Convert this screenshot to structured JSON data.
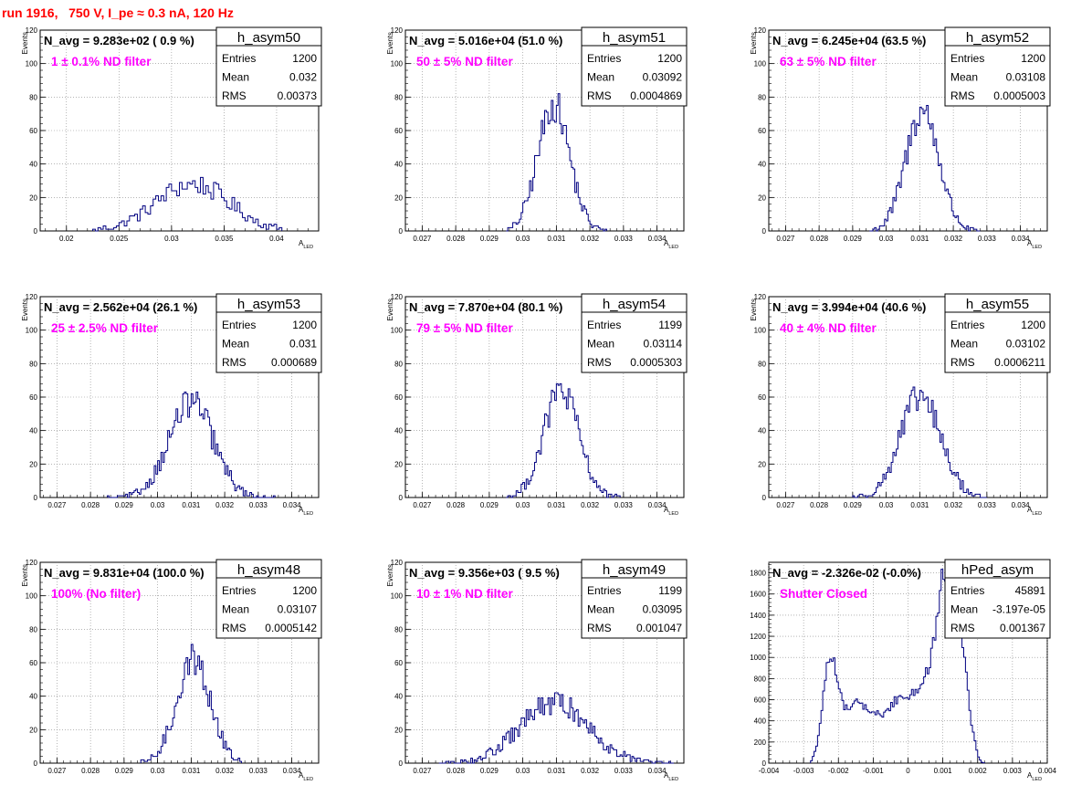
{
  "page_title": "run 1916,   750 V, I_pe ≈ 0.3 nA, 120 Hz",
  "colors": {
    "title": "#ff0000",
    "annotation": "#ff00ff",
    "histogram_line": "#000080",
    "grid": "#888888"
  },
  "chart_data": [
    {
      "type": "histogram",
      "histogram": "h_asym50",
      "navg": "N_avg = 9.283e+02 ( 0.9 %)",
      "annotation": "1 ± 0.1% ND filter",
      "entries": "1200",
      "mean": "0.032",
      "rms": "0.00373",
      "stats_labels": [
        "Entries",
        "Mean",
        "RMS"
      ],
      "xlabel": "A_LED",
      "ylabel": "Events",
      "xlim": [
        0.0175,
        0.044
      ],
      "ylim": [
        0,
        120
      ],
      "xticks": [
        0.02,
        0.025,
        0.03,
        0.035,
        0.04
      ],
      "xtick_labels": [
        "0.02",
        "0.025",
        "0.03",
        "0.035",
        "0.04"
      ],
      "yticks": [
        0,
        20,
        40,
        60,
        80,
        100,
        120
      ],
      "peak": {
        "mean": 0.032,
        "sigma": 0.0035,
        "height": 28
      },
      "bins": {
        "start": 0.0225,
        "end": 0.0405,
        "width": 0.00025
      }
    },
    {
      "type": "histogram",
      "histogram": "h_asym51",
      "navg": "N_avg = 5.016e+04 (51.0 %)",
      "annotation": "50 ± 5% ND filter",
      "entries": "1200",
      "mean": "0.03092",
      "rms": "0.0004869",
      "stats_labels": [
        "Entries",
        "Mean",
        "RMS"
      ],
      "xlabel": "A_LED",
      "ylabel": "Events",
      "xlim": [
        0.0265,
        0.0348
      ],
      "ylim": [
        0,
        120
      ],
      "xticks": [
        0.027,
        0.028,
        0.029,
        0.03,
        0.031,
        0.032,
        0.033,
        0.034
      ],
      "xtick_labels": [
        "0.027",
        "0.028",
        "0.029",
        "0.03",
        "0.031",
        "0.032",
        "0.033",
        "0.034"
      ],
      "yticks": [
        0,
        20,
        40,
        60,
        80,
        100,
        120
      ],
      "peak": {
        "mean": 0.03092,
        "sigma": 0.00047,
        "height": 76
      },
      "bins": {
        "start": 0.0295,
        "end": 0.0325,
        "width": 5e-05
      }
    },
    {
      "type": "histogram",
      "histogram": "h_asym52",
      "navg": "N_avg = 6.245e+04 (63.5 %)",
      "annotation": "63 ± 5% ND filter",
      "entries": "1200",
      "mean": "0.03108",
      "rms": "0.0005003",
      "stats_labels": [
        "Entries",
        "Mean",
        "RMS"
      ],
      "xlabel": "A_LED",
      "ylabel": "Events",
      "xlim": [
        0.0265,
        0.0348
      ],
      "ylim": [
        0,
        120
      ],
      "xticks": [
        0.027,
        0.028,
        0.029,
        0.03,
        0.031,
        0.032,
        0.033,
        0.034
      ],
      "xtick_labels": [
        "0.027",
        "0.028",
        "0.029",
        "0.03",
        "0.031",
        "0.032",
        "0.033",
        "0.034"
      ],
      "yticks": [
        0,
        20,
        40,
        60,
        80,
        100,
        120
      ],
      "peak": {
        "mean": 0.03108,
        "sigma": 0.00049,
        "height": 72
      },
      "bins": {
        "start": 0.0295,
        "end": 0.0328,
        "width": 5e-05
      }
    },
    {
      "type": "histogram",
      "histogram": "h_asym53",
      "navg": "N_avg = 2.562e+04 (26.1 %)",
      "annotation": "25 ± 2.5% ND filter",
      "entries": "1200",
      "mean": "0.031",
      "rms": "0.000689",
      "stats_labels": [
        "Entries",
        "Mean",
        "RMS"
      ],
      "xlabel": "A_LED",
      "ylabel": "Events",
      "xlim": [
        0.0265,
        0.0348
      ],
      "ylim": [
        0,
        120
      ],
      "xticks": [
        0.027,
        0.028,
        0.029,
        0.03,
        0.031,
        0.032,
        0.033,
        0.034
      ],
      "xtick_labels": [
        "0.027",
        "0.028",
        "0.029",
        "0.03",
        "0.031",
        "0.032",
        "0.033",
        "0.034"
      ],
      "yticks": [
        0,
        20,
        40,
        60,
        80,
        100,
        120
      ],
      "peak": {
        "mean": 0.031,
        "sigma": 0.00066,
        "height": 57
      },
      "bins": {
        "start": 0.0285,
        "end": 0.0335,
        "width": 5e-05
      }
    },
    {
      "type": "histogram",
      "histogram": "h_asym54",
      "navg": "N_avg = 7.870e+04 (80.1 %)",
      "annotation": "79 ± 5% ND filter",
      "entries": "1199",
      "mean": "0.03114",
      "rms": "0.0005303",
      "stats_labels": [
        "Entries",
        "Mean",
        "RMS"
      ],
      "xlabel": "A_LED",
      "ylabel": "Events",
      "xlim": [
        0.0265,
        0.0348
      ],
      "ylim": [
        0,
        120
      ],
      "xticks": [
        0.027,
        0.028,
        0.029,
        0.03,
        0.031,
        0.032,
        0.033,
        0.034
      ],
      "xtick_labels": [
        "0.027",
        "0.028",
        "0.029",
        "0.03",
        "0.031",
        "0.032",
        "0.033",
        "0.034"
      ],
      "yticks": [
        0,
        20,
        40,
        60,
        80,
        100,
        120
      ],
      "peak": {
        "mean": 0.03114,
        "sigma": 0.00052,
        "height": 64
      },
      "bins": {
        "start": 0.0295,
        "end": 0.0329,
        "width": 5e-05
      }
    },
    {
      "type": "histogram",
      "histogram": "h_asym55",
      "navg": "N_avg = 3.994e+04 (40.6 %)",
      "annotation": "40 ± 4% ND filter",
      "entries": "1200",
      "mean": "0.03102",
      "rms": "0.0006211",
      "stats_labels": [
        "Entries",
        "Mean",
        "RMS"
      ],
      "xlabel": "A_LED",
      "ylabel": "Events",
      "xlim": [
        0.0265,
        0.0348
      ],
      "ylim": [
        0,
        120
      ],
      "xticks": [
        0.027,
        0.028,
        0.029,
        0.03,
        0.031,
        0.032,
        0.033,
        0.034
      ],
      "xtick_labels": [
        "0.027",
        "0.028",
        "0.029",
        "0.03",
        "0.031",
        "0.032",
        "0.033",
        "0.034"
      ],
      "yticks": [
        0,
        20,
        40,
        60,
        80,
        100,
        120
      ],
      "peak": {
        "mean": 0.03102,
        "sigma": 0.0006,
        "height": 60
      },
      "bins": {
        "start": 0.029,
        "end": 0.033,
        "width": 5e-05
      }
    },
    {
      "type": "histogram",
      "histogram": "h_asym48",
      "navg": "N_avg = 9.831e+04 (100.0 %)",
      "annotation": "100% (No filter)",
      "entries": "1200",
      "mean": "0.03107",
      "rms": "0.0005142",
      "stats_labels": [
        "Entries",
        "Mean",
        "RMS"
      ],
      "xlabel": "A_LED",
      "ylabel": "Events",
      "xlim": [
        0.0265,
        0.0348
      ],
      "ylim": [
        0,
        120
      ],
      "xticks": [
        0.027,
        0.028,
        0.029,
        0.03,
        0.031,
        0.032,
        0.033,
        0.034
      ],
      "xtick_labels": [
        "0.027",
        "0.028",
        "0.029",
        "0.03",
        "0.031",
        "0.032",
        "0.033",
        "0.034"
      ],
      "yticks": [
        0,
        20,
        40,
        60,
        80,
        100,
        120
      ],
      "peak": {
        "mean": 0.03107,
        "sigma": 0.0005,
        "height": 62
      },
      "bins": {
        "start": 0.0295,
        "end": 0.0325,
        "width": 5e-05
      }
    },
    {
      "type": "histogram",
      "histogram": "h_asym49",
      "navg": "N_avg = 9.356e+03 ( 9.5 %)",
      "annotation": "10 ± 1% ND filter",
      "entries": "1199",
      "mean": "0.03095",
      "rms": "0.001047",
      "stats_labels": [
        "Entries",
        "Mean",
        "RMS"
      ],
      "xlabel": "A_LED",
      "ylabel": "Events",
      "xlim": [
        0.0265,
        0.0348
      ],
      "ylim": [
        0,
        120
      ],
      "xticks": [
        0.027,
        0.028,
        0.029,
        0.03,
        0.031,
        0.032,
        0.033,
        0.034
      ],
      "xtick_labels": [
        "0.027",
        "0.028",
        "0.029",
        "0.03",
        "0.031",
        "0.032",
        "0.033",
        "0.034"
      ],
      "yticks": [
        0,
        20,
        40,
        60,
        80,
        100,
        120
      ],
      "peak": {
        "mean": 0.03095,
        "sigma": 0.00102,
        "height": 36
      },
      "bins": {
        "start": 0.0275,
        "end": 0.0345,
        "width": 5e-05
      }
    },
    {
      "type": "histogram",
      "histogram": "hPed_asym",
      "navg": "N_avg = -2.326e-02 (-0.0%)",
      "annotation": "Shutter Closed",
      "entries": "45891",
      "mean": "-3.197e-05",
      "rms": "0.001367",
      "stats_labels": [
        "Entries",
        "Mean",
        "RMS"
      ],
      "xlabel": "A_LED",
      "ylabel": "",
      "xlim": [
        -0.004,
        0.004
      ],
      "ylim": [
        0,
        1900
      ],
      "xticks": [
        -0.004,
        -0.003,
        -0.002,
        -0.001,
        0,
        0.001,
        0.002,
        0.003,
        0.004
      ],
      "xtick_labels": [
        "-0.004",
        "-0.003",
        "-0.002",
        "-0.001",
        "0",
        "0.001",
        "0.002",
        "0.003",
        "0.004"
      ],
      "yticks": [
        0,
        200,
        400,
        600,
        800,
        1000,
        1200,
        1400,
        1600,
        1800
      ],
      "bins": {
        "start": -0.0028,
        "end": 0.0022,
        "width": 5e-05
      },
      "profile_x": [
        -0.0028,
        -0.0026,
        -0.0024,
        -0.0023,
        -0.00215,
        -0.002,
        -0.0018,
        -0.0015,
        -0.0012,
        -0.001,
        -0.0007,
        -0.0004,
        -0.0002,
        0.0,
        0.0003,
        0.0006,
        0.0008,
        0.00095,
        0.001,
        0.0011,
        0.0012,
        0.00135,
        0.0015,
        0.00165,
        0.0018,
        0.002,
        0.0021,
        0.0022
      ],
      "profile_y": [
        0,
        180,
        720,
        1030,
        1000,
        700,
        520,
        580,
        520,
        480,
        450,
        580,
        640,
        620,
        720,
        900,
        1250,
        1600,
        1830,
        1550,
        1380,
        1450,
        1300,
        900,
        420,
        80,
        10,
        0
      ]
    }
  ]
}
